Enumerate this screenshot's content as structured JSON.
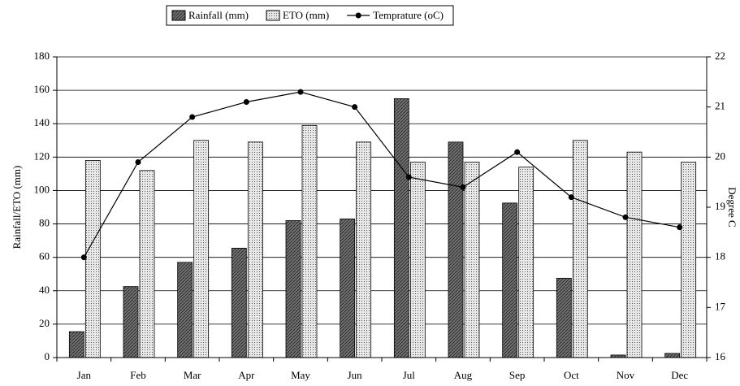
{
  "chart_data": {
    "type": "bar_line",
    "categories": [
      "Jan",
      "Feb",
      "Mar",
      "Apr",
      "May",
      "Jun",
      "Jul",
      "Aug",
      "Sep",
      "Oct",
      "Nov",
      "Dec"
    ],
    "series": [
      {
        "name": "Rainfall (mm)",
        "type": "bar",
        "color": "#707070",
        "values": [
          15.5,
          42.5,
          57,
          65.5,
          82,
          83,
          155,
          129,
          92.5,
          47.5,
          1.5,
          2.5
        ]
      },
      {
        "name": "ETO (mm)",
        "type": "bar",
        "color": "#e8e8e8",
        "values": [
          118,
          112,
          130,
          129,
          139,
          129,
          117,
          117,
          114,
          130,
          123,
          117
        ]
      },
      {
        "name": "Temprature (oC)",
        "type": "line",
        "axis": "y2",
        "color": "#000000",
        "values": [
          18.0,
          19.9,
          20.8,
          21.1,
          21.3,
          21.0,
          19.6,
          19.4,
          20.1,
          19.2,
          18.8,
          18.6
        ]
      }
    ],
    "ylabel": "Rainfall/ETO (mm)",
    "y2label": "Degree C",
    "ylim": [
      0,
      180
    ],
    "yticks": [
      0,
      20,
      40,
      60,
      80,
      100,
      120,
      140,
      160,
      180
    ],
    "y2lim": [
      16,
      22
    ],
    "y2ticks": [
      16,
      17,
      18,
      19,
      20,
      21,
      22
    ],
    "grid": true,
    "legend": "top"
  }
}
